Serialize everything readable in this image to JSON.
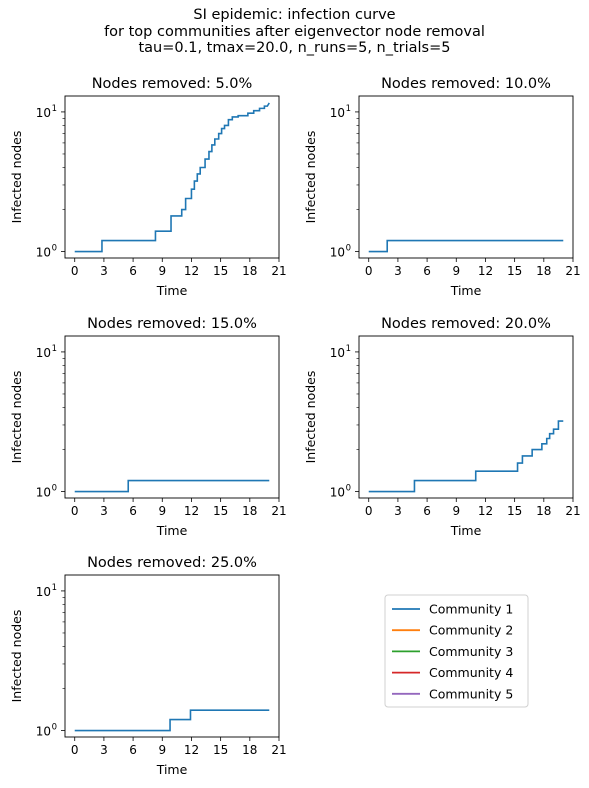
{
  "figure": {
    "suptitle_lines": [
      "SI epidemic: infection curve",
      "for top communities after eigenvector node removal",
      "tau=0.1, tmax=20.0, n_runs=5, n_trials=5"
    ]
  },
  "colors": {
    "Community 1": "#1f77b4",
    "Community 2": "#ff7f0e",
    "Community 3": "#2ca02c",
    "Community 4": "#d62728",
    "Community 5": "#9467bd"
  },
  "chart_data": [
    {
      "type": "line",
      "title": "Nodes removed: 5.0%",
      "xlabel": "Time",
      "ylabel": "Infected nodes",
      "xlim": [
        -1,
        21
      ],
      "ylim": [
        0.9,
        13
      ],
      "yscale": "log",
      "xticks": [
        0,
        3,
        6,
        9,
        12,
        15,
        18,
        21
      ],
      "yticks": [
        {
          "value": 1,
          "label": "10",
          "exp": "0"
        },
        {
          "value": 10,
          "label": "10",
          "exp": "1"
        }
      ],
      "series": [
        {
          "name": "Community 1",
          "points": [
            [
              0,
              1.0
            ],
            [
              2.8,
              1.0
            ],
            [
              2.8,
              1.2
            ],
            [
              8.3,
              1.2
            ],
            [
              8.3,
              1.4
            ],
            [
              9.9,
              1.4
            ],
            [
              9.9,
              1.8
            ],
            [
              11.0,
              1.8
            ],
            [
              11.0,
              2.0
            ],
            [
              11.4,
              2.0
            ],
            [
              11.4,
              2.4
            ],
            [
              12.0,
              2.4
            ],
            [
              12.0,
              2.8
            ],
            [
              12.3,
              2.8
            ],
            [
              12.3,
              3.2
            ],
            [
              12.6,
              3.2
            ],
            [
              12.6,
              3.6
            ],
            [
              12.9,
              3.6
            ],
            [
              12.9,
              4.0
            ],
            [
              13.4,
              4.0
            ],
            [
              13.4,
              4.6
            ],
            [
              13.8,
              4.6
            ],
            [
              13.8,
              5.2
            ],
            [
              14.1,
              5.2
            ],
            [
              14.1,
              5.8
            ],
            [
              14.4,
              5.8
            ],
            [
              14.4,
              6.4
            ],
            [
              14.8,
              6.4
            ],
            [
              14.8,
              7.0
            ],
            [
              15.1,
              7.0
            ],
            [
              15.1,
              7.6
            ],
            [
              15.4,
              7.6
            ],
            [
              15.4,
              8.0
            ],
            [
              15.8,
              8.0
            ],
            [
              15.8,
              8.8
            ],
            [
              16.2,
              8.8
            ],
            [
              16.2,
              9.2
            ],
            [
              16.8,
              9.2
            ],
            [
              16.8,
              9.4
            ],
            [
              17.8,
              9.4
            ],
            [
              17.8,
              9.8
            ],
            [
              18.4,
              9.8
            ],
            [
              18.4,
              10.2
            ],
            [
              19.0,
              10.2
            ],
            [
              19.0,
              10.6
            ],
            [
              19.5,
              10.6
            ],
            [
              19.5,
              11.0
            ],
            [
              19.8,
              11.0
            ],
            [
              20.0,
              11.6
            ]
          ]
        }
      ]
    },
    {
      "type": "line",
      "title": "Nodes removed: 10.0%",
      "xlabel": "Time",
      "ylabel": "Infected nodes",
      "xlim": [
        -1,
        21
      ],
      "ylim": [
        0.9,
        13
      ],
      "yscale": "log",
      "xticks": [
        0,
        3,
        6,
        9,
        12,
        15,
        18,
        21
      ],
      "yticks": [
        {
          "value": 1,
          "label": "10",
          "exp": "0"
        },
        {
          "value": 10,
          "label": "10",
          "exp": "1"
        }
      ],
      "series": [
        {
          "name": "Community 1",
          "points": [
            [
              0,
              1.0
            ],
            [
              1.9,
              1.0
            ],
            [
              1.9,
              1.2
            ],
            [
              20,
              1.2
            ]
          ]
        }
      ]
    },
    {
      "type": "line",
      "title": "Nodes removed: 15.0%",
      "xlabel": "Time",
      "ylabel": "Infected nodes",
      "xlim": [
        -1,
        21
      ],
      "ylim": [
        0.9,
        13
      ],
      "yscale": "log",
      "xticks": [
        0,
        3,
        6,
        9,
        12,
        15,
        18,
        21
      ],
      "yticks": [
        {
          "value": 1,
          "label": "10",
          "exp": "0"
        },
        {
          "value": 10,
          "label": "10",
          "exp": "1"
        }
      ],
      "series": [
        {
          "name": "Community 1",
          "points": [
            [
              0,
              1.0
            ],
            [
              5.5,
              1.0
            ],
            [
              5.5,
              1.2
            ],
            [
              20,
              1.2
            ]
          ]
        }
      ]
    },
    {
      "type": "line",
      "title": "Nodes removed: 20.0%",
      "xlabel": "Time",
      "ylabel": "Infected nodes",
      "xlim": [
        -1,
        21
      ],
      "ylim": [
        0.9,
        13
      ],
      "yscale": "log",
      "xticks": [
        0,
        3,
        6,
        9,
        12,
        15,
        18,
        21
      ],
      "yticks": [
        {
          "value": 1,
          "label": "10",
          "exp": "0"
        },
        {
          "value": 10,
          "label": "10",
          "exp": "1"
        }
      ],
      "series": [
        {
          "name": "Community 1",
          "points": [
            [
              0,
              1.0
            ],
            [
              4.7,
              1.0
            ],
            [
              4.7,
              1.2
            ],
            [
              11.0,
              1.2
            ],
            [
              11.0,
              1.4
            ],
            [
              15.3,
              1.4
            ],
            [
              15.3,
              1.6
            ],
            [
              15.8,
              1.6
            ],
            [
              15.8,
              1.8
            ],
            [
              16.8,
              1.8
            ],
            [
              16.8,
              2.0
            ],
            [
              17.8,
              2.0
            ],
            [
              17.8,
              2.2
            ],
            [
              18.3,
              2.2
            ],
            [
              18.3,
              2.4
            ],
            [
              18.6,
              2.4
            ],
            [
              18.6,
              2.6
            ],
            [
              19.0,
              2.6
            ],
            [
              19.0,
              2.8
            ],
            [
              19.5,
              2.8
            ],
            [
              19.5,
              3.2
            ],
            [
              20.0,
              3.2
            ]
          ]
        }
      ]
    },
    {
      "type": "line",
      "title": "Nodes removed: 25.0%",
      "xlabel": "Time",
      "ylabel": "Infected nodes",
      "xlim": [
        -1,
        21
      ],
      "ylim": [
        0.9,
        13
      ],
      "yscale": "log",
      "xticks": [
        0,
        3,
        6,
        9,
        12,
        15,
        18,
        21
      ],
      "yticks": [
        {
          "value": 1,
          "label": "10",
          "exp": "0"
        },
        {
          "value": 10,
          "label": "10",
          "exp": "1"
        }
      ],
      "series": [
        {
          "name": "Community 1",
          "points": [
            [
              0,
              1.0
            ],
            [
              9.8,
              1.0
            ],
            [
              9.8,
              1.2
            ],
            [
              11.9,
              1.2
            ],
            [
              11.9,
              1.4
            ],
            [
              20,
              1.4
            ]
          ]
        }
      ]
    }
  ],
  "legend": {
    "entries": [
      "Community 1",
      "Community 2",
      "Community 3",
      "Community 4",
      "Community 5"
    ]
  }
}
